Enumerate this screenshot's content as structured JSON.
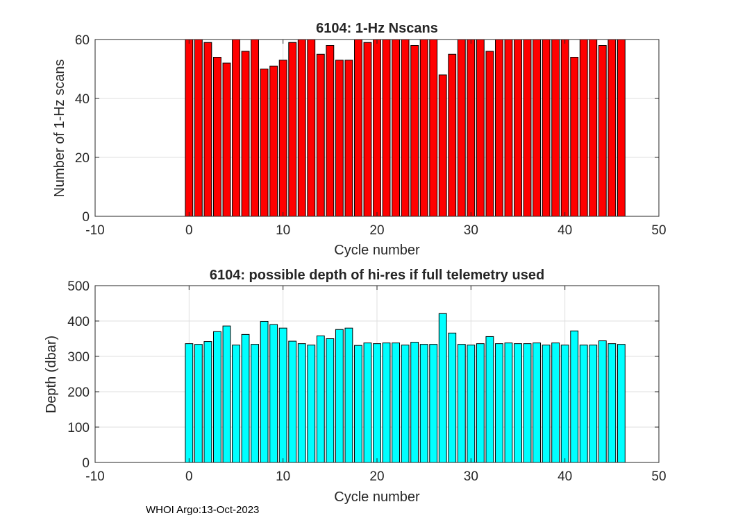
{
  "footer": "WHOI Argo:13-Oct-2023",
  "chart_data": [
    {
      "type": "bar",
      "title": "6104: 1-Hz Nscans",
      "xlabel": "Cycle number",
      "ylabel": "Number of 1-Hz scans",
      "xlim": [
        -10,
        50
      ],
      "ylim": [
        0,
        60
      ],
      "xticks": [
        -10,
        0,
        10,
        20,
        30,
        40,
        50
      ],
      "yticks": [
        0,
        20,
        40,
        60
      ],
      "grid": true,
      "bar_color": "#ff0000",
      "x": [
        0,
        1,
        2,
        3,
        4,
        5,
        6,
        7,
        8,
        9,
        10,
        11,
        12,
        13,
        14,
        15,
        16,
        17,
        18,
        19,
        20,
        21,
        22,
        23,
        24,
        25,
        26,
        27,
        28,
        29,
        30,
        31,
        32,
        33,
        34,
        35,
        36,
        37,
        38,
        39,
        40,
        41,
        42,
        43,
        44,
        45,
        46
      ],
      "values": [
        60,
        60,
        59,
        54,
        52,
        60,
        56,
        60,
        50,
        51,
        53,
        59,
        60,
        60,
        55,
        58,
        53,
        53,
        60,
        59,
        60,
        60,
        60,
        60,
        58,
        60,
        60,
        48,
        55,
        60,
        60,
        60,
        56,
        60,
        60,
        60,
        60,
        60,
        60,
        60,
        60,
        54,
        60,
        60,
        58,
        60,
        60
      ]
    },
    {
      "type": "bar",
      "title": "6104: possible depth of hi-res if full telemetry used",
      "xlabel": "Cycle number",
      "ylabel": "Depth (dbar)",
      "xlim": [
        -10,
        50
      ],
      "ylim": [
        0,
        500
      ],
      "xticks": [
        -10,
        0,
        10,
        20,
        30,
        40,
        50
      ],
      "yticks": [
        0,
        100,
        200,
        300,
        400,
        500
      ],
      "grid": true,
      "bar_color": "#00ffff",
      "x": [
        0,
        1,
        2,
        3,
        4,
        5,
        6,
        7,
        8,
        9,
        10,
        11,
        12,
        13,
        14,
        15,
        16,
        17,
        18,
        19,
        20,
        21,
        22,
        23,
        24,
        25,
        26,
        27,
        28,
        29,
        30,
        31,
        32,
        33,
        34,
        35,
        36,
        37,
        38,
        39,
        40,
        41,
        42,
        43,
        44,
        45,
        46
      ],
      "values": [
        336,
        334,
        342,
        370,
        386,
        332,
        362,
        334,
        399,
        390,
        380,
        343,
        336,
        332,
        358,
        350,
        376,
        380,
        331,
        338,
        336,
        338,
        338,
        332,
        340,
        334,
        334,
        421,
        366,
        334,
        332,
        336,
        356,
        336,
        338,
        336,
        336,
        338,
        332,
        338,
        332,
        372,
        332,
        332,
        344,
        336,
        334
      ]
    }
  ]
}
